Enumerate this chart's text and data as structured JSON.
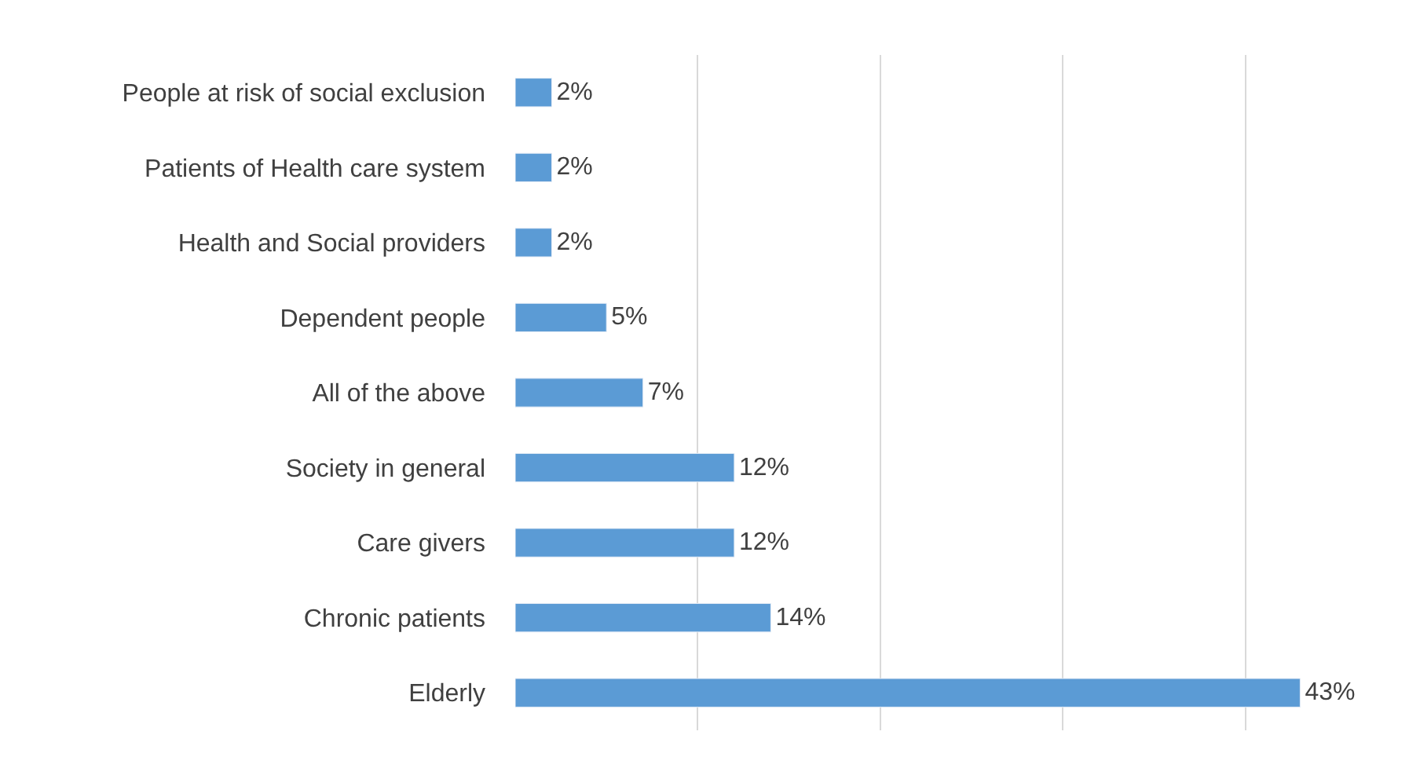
{
  "chart_data": {
    "type": "bar",
    "orientation": "horizontal",
    "categories": [
      "People at risk of social exclusion",
      "Patients of Health care system",
      "Health and Social providers",
      "Dependent people",
      "All of the above",
      "Society in general",
      "Care givers",
      "Chronic patients",
      "Elderly"
    ],
    "values": [
      2,
      2,
      2,
      5,
      7,
      12,
      12,
      14,
      43
    ],
    "value_labels": [
      "2%",
      "2%",
      "2%",
      "5%",
      "7%",
      "12%",
      "12%",
      "14%",
      "43%"
    ],
    "color": "#5b9bd5",
    "tick_labels": "y",
    "grid": "x",
    "legend": false
  }
}
